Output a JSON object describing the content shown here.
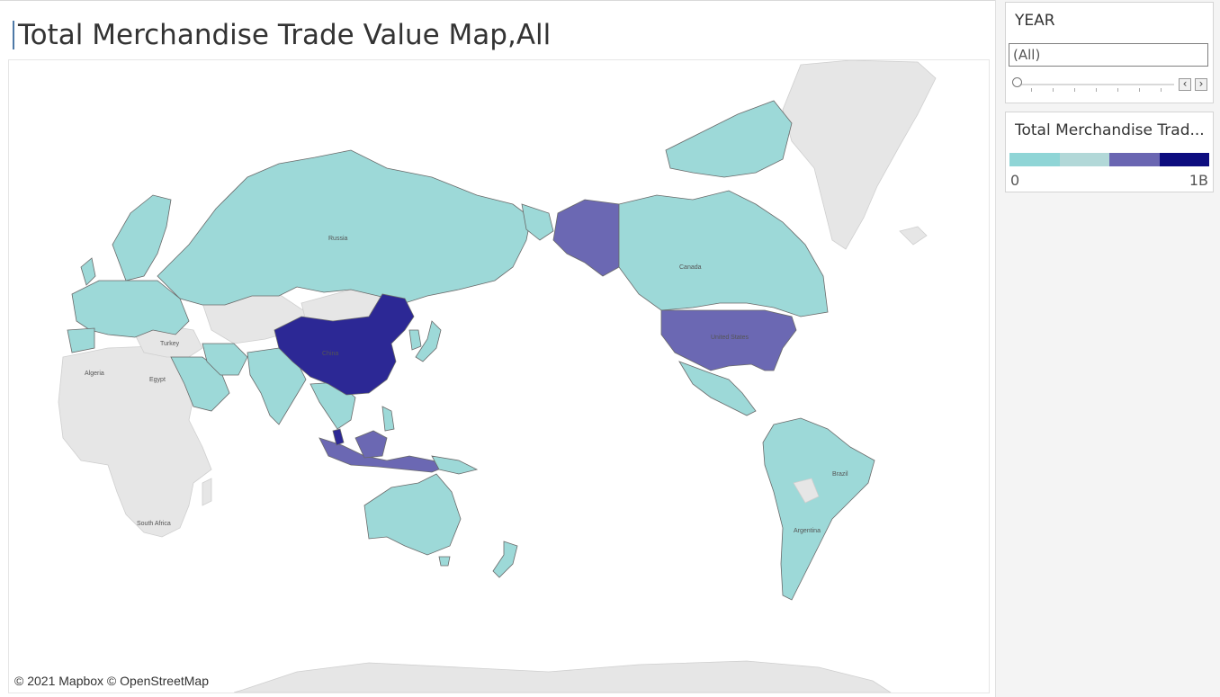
{
  "title": "Total Merchandise Trade Value Map,All",
  "attribution": "© 2021 Mapbox © OpenStreetMap",
  "year_filter": {
    "title": "YEAR",
    "value": "(All)",
    "prev_icon": "chevron-left-icon",
    "next_icon": "chevron-right-icon"
  },
  "legend": {
    "title": "Total Merchandise Trad...",
    "min_label": "0",
    "max_label": "1B",
    "colors": [
      "#8fd5d6",
      "#b2d8d8",
      "#6a66b2",
      "#0d0d7f"
    ]
  },
  "map_labels": {
    "russia": "Russia",
    "canada": "Canada",
    "united_states": "United States",
    "china": "China",
    "turkey": "Turkey",
    "algeria": "Algeria",
    "egypt": "Egypt",
    "south_africa": "South Africa",
    "brazil": "Brazil",
    "argentina": "Argentina"
  },
  "colors": {
    "low": "#9dd9d8",
    "mid": "#6b68b3",
    "high": "#2c2895",
    "no_data": "#e6e6e6"
  }
}
